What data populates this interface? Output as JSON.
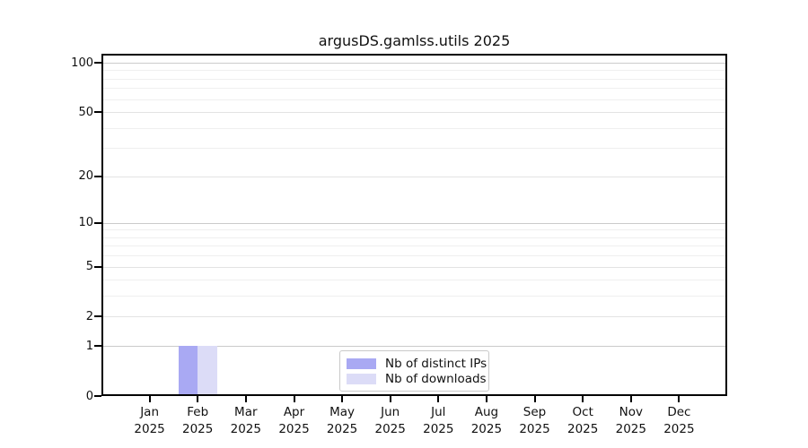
{
  "chart_data": {
    "type": "bar",
    "title": "argusDS.gamlss.utils 2025",
    "y_axis": {
      "scale": "log1p",
      "ticks": [
        100,
        50,
        20,
        10,
        5,
        2,
        1,
        0
      ],
      "range": [
        0,
        100
      ]
    },
    "x_categories": [
      {
        "label": "Jan",
        "year": "2025"
      },
      {
        "label": "Feb",
        "year": "2025"
      },
      {
        "label": "Mar",
        "year": "2025"
      },
      {
        "label": "Apr",
        "year": "2025"
      },
      {
        "label": "May",
        "year": "2025"
      },
      {
        "label": "Jun",
        "year": "2025"
      },
      {
        "label": "Jul",
        "year": "2025"
      },
      {
        "label": "Aug",
        "year": "2025"
      },
      {
        "label": "Sep",
        "year": "2025"
      },
      {
        "label": "Oct",
        "year": "2025"
      },
      {
        "label": "Nov",
        "year": "2025"
      },
      {
        "label": "Dec",
        "year": "2025"
      }
    ],
    "series": [
      {
        "name": "Nb of distinct IPs",
        "color": "#a9a9f3",
        "values": [
          0,
          1,
          0,
          0,
          0,
          0,
          0,
          0,
          0,
          0,
          0,
          0
        ]
      },
      {
        "name": "Nb of downloads",
        "color": "#dcdcf7",
        "values": [
          0,
          1,
          0,
          0,
          0,
          0,
          0,
          0,
          0,
          0,
          0,
          0
        ]
      }
    ],
    "legend": {
      "position": "bottom-center",
      "entries": [
        "Nb of distinct IPs",
        "Nb of downloads"
      ]
    },
    "grid": {
      "major_color": "#cbcbcb",
      "mid_color": "#e3e3e3",
      "minor_color": "#efefef",
      "minor_ticks": [
        3,
        4,
        6,
        7,
        8,
        9,
        30,
        40,
        60,
        70,
        80,
        90
      ]
    },
    "colors": {
      "axis": "#000000",
      "background": "#ffffff",
      "legend_border": "#c9c9c9"
    }
  }
}
